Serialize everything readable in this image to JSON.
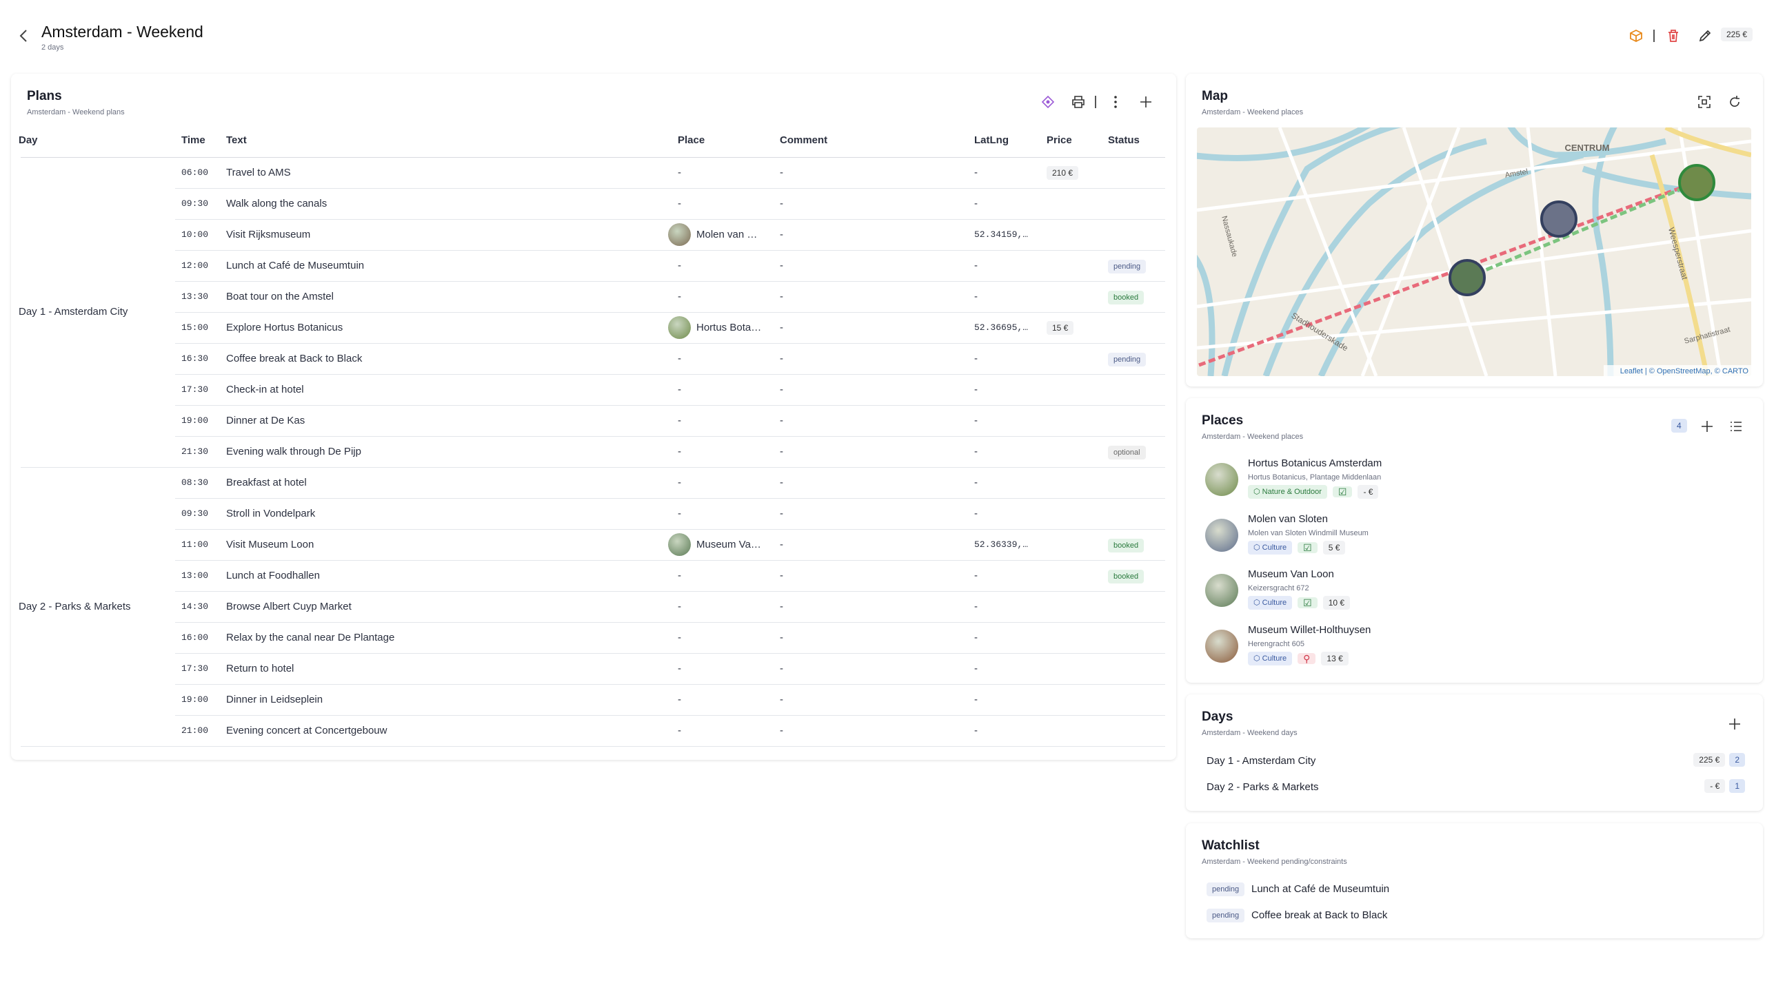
{
  "header": {
    "title": "Amsterdam - Weekend",
    "subtitle": "2 days",
    "total": "225 €"
  },
  "plans": {
    "title": "Plans",
    "subtitle": "Amsterdam - Weekend plans",
    "columns": [
      "Day",
      "Time",
      "Text",
      "Place",
      "Comment",
      "LatLng",
      "Price",
      "Status"
    ],
    "groups": [
      {
        "day": "Day 1 - Amsterdam City",
        "rows": [
          {
            "time": "06:00",
            "text": "Travel to AMS",
            "place": "-",
            "comment": "-",
            "latlng": "-",
            "price": "210 €"
          },
          {
            "time": "09:30",
            "text": "Walk along the canals",
            "place": "-",
            "comment": "-",
            "latlng": "-"
          },
          {
            "time": "10:00",
            "text": "Visit Rijksmuseum",
            "place": "Molen van …",
            "comment": "-",
            "latlng": "52.34159,…"
          },
          {
            "time": "12:00",
            "text": "Lunch at Café de Museumtuin",
            "place": "-",
            "comment": "-",
            "latlng": "-",
            "status": "pending"
          },
          {
            "time": "13:30",
            "text": "Boat tour on the Amstel",
            "place": "-",
            "comment": "-",
            "latlng": "-",
            "status": "booked"
          },
          {
            "time": "15:00",
            "text": "Explore Hortus Botanicus",
            "place": "Hortus Bota…",
            "comment": "-",
            "latlng": "52.36695,…",
            "price": "15 €"
          },
          {
            "time": "16:30",
            "text": "Coffee break at Back to Black",
            "place": "-",
            "comment": "-",
            "latlng": "-",
            "status": "pending"
          },
          {
            "time": "17:30",
            "text": "Check-in at hotel",
            "place": "-",
            "comment": "-",
            "latlng": "-"
          },
          {
            "time": "19:00",
            "text": "Dinner at De Kas",
            "place": "-",
            "comment": "-",
            "latlng": "-"
          },
          {
            "time": "21:30",
            "text": "Evening walk through De Pijp",
            "place": "-",
            "comment": "-",
            "latlng": "-",
            "status": "optional"
          }
        ]
      },
      {
        "day": "Day 2 - Parks & Markets",
        "rows": [
          {
            "time": "08:30",
            "text": "Breakfast at hotel",
            "place": "-",
            "comment": "-",
            "latlng": "-"
          },
          {
            "time": "09:30",
            "text": "Stroll in Vondelpark",
            "place": "-",
            "comment": "-",
            "latlng": "-"
          },
          {
            "time": "11:00",
            "text": "Visit Museum Loon",
            "place": "Museum Va…",
            "comment": "-",
            "latlng": "52.36339,…",
            "status": "booked"
          },
          {
            "time": "13:00",
            "text": "Lunch at Foodhallen",
            "place": "-",
            "comment": "-",
            "latlng": "-",
            "status": "booked"
          },
          {
            "time": "14:30",
            "text": "Browse Albert Cuyp Market",
            "place": "-",
            "comment": "-",
            "latlng": "-"
          },
          {
            "time": "16:00",
            "text": "Relax by the canal near De Plantage",
            "place": "-",
            "comment": "-",
            "latlng": "-"
          },
          {
            "time": "17:30",
            "text": "Return to hotel",
            "place": "-",
            "comment": "-",
            "latlng": "-"
          },
          {
            "time": "19:00",
            "text": "Dinner in Leidseplein",
            "place": "-",
            "comment": "-",
            "latlng": "-"
          },
          {
            "time": "21:00",
            "text": "Evening concert at Concertgebouw",
            "place": "-",
            "comment": "-",
            "latlng": "-"
          }
        ]
      }
    ]
  },
  "map": {
    "title": "Map",
    "subtitle": "Amsterdam - Weekend places",
    "labels": [
      "CENTRUM",
      "Stadhouderskade",
      "Weesperstraat",
      "Sarphatistraat",
      "Amstel",
      "Nassaukade"
    ],
    "attribution": "Leaflet | © OpenStreetMap, © CARTO"
  },
  "places": {
    "title": "Places",
    "subtitle": "Amsterdam - Weekend places",
    "count": "4",
    "items": [
      {
        "name": "Hortus Botanicus Amsterdam",
        "address": "Hortus Botanicus, Plantage Middenlaan",
        "category": "Nature & Outdoor",
        "price": "- €"
      },
      {
        "name": "Molen van Sloten",
        "address": "Molen van Sloten Windmill Museum",
        "category": "Culture",
        "price": "5 €"
      },
      {
        "name": "Museum Van Loon",
        "address": "Keizersgracht 672",
        "category": "Culture",
        "price": "10 €"
      },
      {
        "name": "Museum Willet-Holthuysen",
        "address": "Herengracht 605",
        "category": "Culture",
        "price": "13 €"
      }
    ]
  },
  "days": {
    "title": "Days",
    "subtitle": "Amsterdam - Weekend days",
    "items": [
      {
        "name": "Day 1 - Amsterdam City",
        "price": "225 €",
        "count": "2"
      },
      {
        "name": "Day 2 - Parks & Markets",
        "price": "- €",
        "count": "1"
      }
    ]
  },
  "watchlist": {
    "title": "Watchlist",
    "subtitle": "Amsterdam - Weekend pending/constraints",
    "items": [
      {
        "status": "pending",
        "text": "Lunch at Café de Museumtuin"
      },
      {
        "status": "pending",
        "text": "Coffee break at Back to Black"
      }
    ]
  }
}
